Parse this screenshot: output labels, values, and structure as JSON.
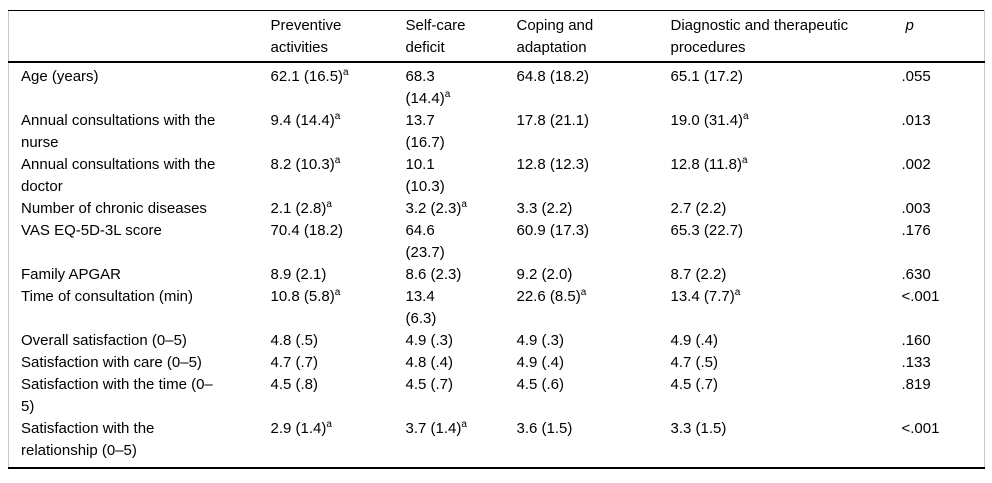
{
  "colors": {
    "text": "#000000",
    "rule": "#000000",
    "side_rule": "#c9c9c9",
    "background": "#ffffff"
  },
  "table": {
    "columns": [
      {
        "label": ""
      },
      {
        "label": "Preventive\nactivities"
      },
      {
        "label": "Self-care\ndeficit"
      },
      {
        "label": "Coping and\nadaptation"
      },
      {
        "label": "Diagnostic and therapeutic\nprocedures"
      },
      {
        "label": "p",
        "italic": true
      }
    ],
    "rows": [
      {
        "label": "Age (years)",
        "cells": [
          {
            "v": "62.1 (16.5)",
            "sup": "a"
          },
          {
            "v": "68.3\n(14.4)",
            "sup": "a"
          },
          {
            "v": "64.8 (18.2)"
          },
          {
            "v": "65.1 (17.2)"
          },
          {
            "v": ".055"
          }
        ]
      },
      {
        "label": "Annual consultations with the\nnurse",
        "cells": [
          {
            "v": "9.4 (14.4)",
            "sup": "a"
          },
          {
            "v": "13.7\n(16.7)"
          },
          {
            "v": "17.8 (21.1)"
          },
          {
            "v": "19.0 (31.4)",
            "sup": "a"
          },
          {
            "v": ".013"
          }
        ]
      },
      {
        "label": "Annual consultations with the\ndoctor",
        "cells": [
          {
            "v": "8.2 (10.3)",
            "sup": "a"
          },
          {
            "v": "10.1\n(10.3)"
          },
          {
            "v": "12.8 (12.3)"
          },
          {
            "v": "12.8 (11.8)",
            "sup": "a"
          },
          {
            "v": ".002"
          }
        ]
      },
      {
        "label": "Number of chronic diseases",
        "cells": [
          {
            "v": "2.1 (2.8)",
            "sup": "a"
          },
          {
            "v": "3.2 (2.3)",
            "sup": "a"
          },
          {
            "v": "3.3 (2.2)"
          },
          {
            "v": "2.7 (2.2)"
          },
          {
            "v": ".003"
          }
        ]
      },
      {
        "label": "VAS EQ-5D-3L score",
        "cells": [
          {
            "v": "70.4 (18.2)"
          },
          {
            "v": "64.6\n(23.7)"
          },
          {
            "v": "60.9 (17.3)"
          },
          {
            "v": "65.3 (22.7)"
          },
          {
            "v": ".176"
          }
        ]
      },
      {
        "label": "Family APGAR",
        "cells": [
          {
            "v": "8.9 (2.1)"
          },
          {
            "v": "8.6 (2.3)"
          },
          {
            "v": "9.2 (2.0)"
          },
          {
            "v": "8.7 (2.2)"
          },
          {
            "v": ".630"
          }
        ]
      },
      {
        "label": "Time of consultation (min)",
        "cells": [
          {
            "v": "10.8 (5.8)",
            "sup": "a"
          },
          {
            "v": "13.4\n(6.3)"
          },
          {
            "v": "22.6 (8.5)",
            "sup": "a"
          },
          {
            "v": "13.4 (7.7)",
            "sup": "a"
          },
          {
            "v": "<.001"
          }
        ]
      },
      {
        "label": "Overall satisfaction (0–5)",
        "cells": [
          {
            "v": "4.8 (.5)"
          },
          {
            "v": "4.9 (.3)"
          },
          {
            "v": "4.9 (.3)"
          },
          {
            "v": "4.9 (.4)"
          },
          {
            "v": ".160"
          }
        ]
      },
      {
        "label": "Satisfaction with care (0–5)",
        "cells": [
          {
            "v": "4.7 (.7)"
          },
          {
            "v": "4.8 (.4)"
          },
          {
            "v": "4.9 (.4)"
          },
          {
            "v": "4.7 (.5)"
          },
          {
            "v": ".133"
          }
        ]
      },
      {
        "label": "Satisfaction with the time (0–\n5)",
        "cells": [
          {
            "v": "4.5 (.8)"
          },
          {
            "v": "4.5 (.7)"
          },
          {
            "v": "4.5 (.6)"
          },
          {
            "v": "4.5 (.7)"
          },
          {
            "v": ".819"
          }
        ]
      },
      {
        "label": "Satisfaction with the\nrelationship (0–5)",
        "cells": [
          {
            "v": "2.9 (1.4)",
            "sup": "a"
          },
          {
            "v": "3.7 (1.4)",
            "sup": "a"
          },
          {
            "v": "3.6 (1.5)"
          },
          {
            "v": "3.3 (1.5)"
          },
          {
            "v": "<.001"
          }
        ]
      }
    ]
  }
}
